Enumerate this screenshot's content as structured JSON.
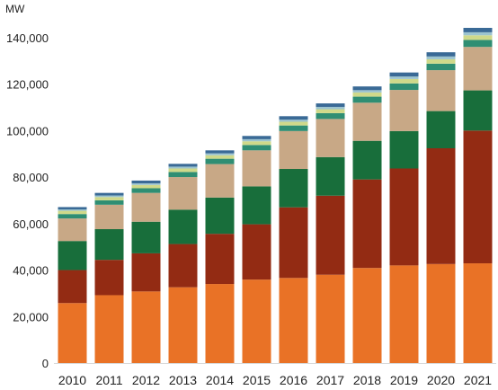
{
  "chart_data": {
    "type": "bar",
    "stacked": true,
    "title": "",
    "xlabel": "",
    "ylabel": "",
    "unit_label": "MW",
    "categories": [
      "2010",
      "2011",
      "2012",
      "2013",
      "2014",
      "2015",
      "2016",
      "2017",
      "2018",
      "2019",
      "2020",
      "2021"
    ],
    "ylim": [
      0,
      150000
    ],
    "yticks": [
      0,
      20000,
      40000,
      60000,
      80000,
      100000,
      120000,
      140000
    ],
    "ytick_labels": [
      "0",
      "20,000",
      "40,000",
      "60,000",
      "80,000",
      "100,000",
      "120,000",
      "140,000"
    ],
    "grid": false,
    "legend": "none",
    "series": [
      {
        "color": "#E97226",
        "values": [
          25800,
          29200,
          30800,
          32600,
          34000,
          35900,
          36600,
          38000,
          40900,
          42000,
          42600,
          42900
        ]
      },
      {
        "color": "#932B13",
        "values": [
          14200,
          15200,
          16400,
          18600,
          21600,
          23800,
          30400,
          34000,
          38100,
          41700,
          49800,
          57100
        ]
      },
      {
        "color": "#186E3B",
        "values": [
          12500,
          13200,
          13600,
          14800,
          15600,
          16300,
          16500,
          16600,
          16600,
          16100,
          16000,
          17300
        ]
      },
      {
        "color": "#C8A886",
        "values": [
          9700,
          10500,
          12400,
          14000,
          14400,
          15500,
          16300,
          16400,
          16400,
          17700,
          17600,
          18700
        ]
      },
      {
        "color": "#2F8E73",
        "values": [
          1900,
          1900,
          2000,
          2200,
          2300,
          2300,
          2400,
          2500,
          2600,
          2800,
          2800,
          3000
        ]
      },
      {
        "color": "#CFD98A",
        "values": [
          1400,
          1400,
          1400,
          1500,
          1500,
          1600,
          1600,
          1700,
          1800,
          1900,
          1900,
          2000
        ]
      },
      {
        "color": "#9CC4CF",
        "values": [
          600,
          700,
          700,
          800,
          800,
          900,
          900,
          1000,
          1000,
          1100,
          1200,
          1300
        ]
      },
      {
        "color": "#3A6A96",
        "values": [
          1000,
          1100,
          1200,
          1200,
          1300,
          1400,
          1500,
          1500,
          1600,
          1700,
          1800,
          1900
        ]
      }
    ]
  }
}
